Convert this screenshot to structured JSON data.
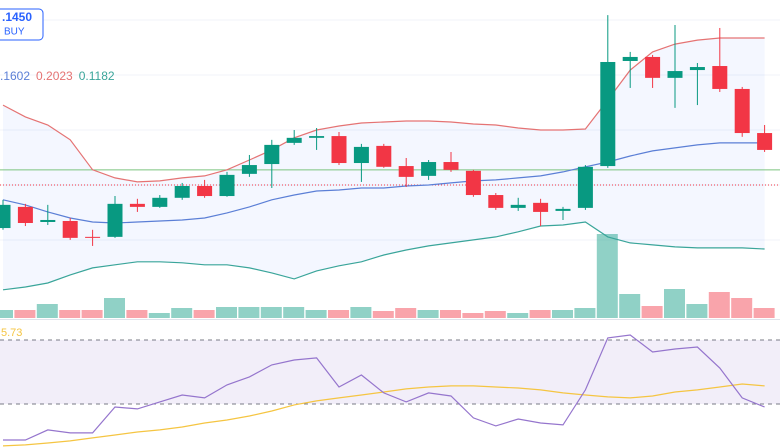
{
  "chart_data": {
    "type": "candlestick",
    "price_label": ".1450",
    "price_label_action": "BUY",
    "up_color": "#089981",
    "down_color": "#f23645",
    "ylim": [
      0.0912,
      0.2174
    ],
    "candles": {
      "open": [
        0.1269,
        0.1353,
        0.1293,
        0.1297,
        0.1234,
        0.1234,
        0.1365,
        0.1353,
        0.1389,
        0.1436,
        0.1396,
        0.1484,
        0.1523,
        0.1607,
        0.1627,
        0.1634,
        0.1527,
        0.1595,
        0.1515,
        0.1476,
        0.1531,
        0.1496,
        0.14,
        0.1349,
        0.1369,
        0.1337,
        0.1349,
        0.1515,
        0.1932,
        0.1948,
        0.1865,
        0.1896,
        0.1912,
        0.1821,
        0.1646
      ],
      "high": [
        0.1381,
        0.1365,
        0.1361,
        0.1309,
        0.1262,
        0.1396,
        0.1385,
        0.14,
        0.1448,
        0.146,
        0.1492,
        0.1559,
        0.1619,
        0.1658,
        0.1666,
        0.165,
        0.1603,
        0.1603,
        0.1547,
        0.1539,
        0.1571,
        0.15,
        0.1408,
        0.1389,
        0.1385,
        0.1353,
        0.1519,
        0.2114,
        0.1968,
        0.1956,
        0.2075,
        0.1924,
        0.2063,
        0.1829,
        0.1678
      ],
      "low": [
        0.1262,
        0.1277,
        0.1281,
        0.1222,
        0.1198,
        0.123,
        0.1333,
        0.1349,
        0.1381,
        0.1389,
        0.1393,
        0.1472,
        0.1428,
        0.1599,
        0.1579,
        0.1519,
        0.1452,
        0.1508,
        0.1432,
        0.146,
        0.1492,
        0.1393,
        0.1341,
        0.1337,
        0.1277,
        0.1301,
        0.1341,
        0.1508,
        0.1825,
        0.1825,
        0.1746,
        0.1757,
        0.1809,
        0.1631,
        0.1571
      ],
      "close": [
        0.1361,
        0.1289,
        0.1301,
        0.123,
        0.123,
        0.1365,
        0.1353,
        0.1389,
        0.1436,
        0.1396,
        0.148,
        0.1519,
        0.1599,
        0.1627,
        0.1634,
        0.1527,
        0.1591,
        0.1512,
        0.1472,
        0.1531,
        0.15,
        0.14,
        0.1349,
        0.1361,
        0.1333,
        0.1345,
        0.1512,
        0.1928,
        0.1948,
        0.1865,
        0.1892,
        0.1908,
        0.1821,
        0.1646,
        0.1579
      ]
    },
    "bands": [
      {
        "color": "#5b7fd6",
        "values": [
          0.1381,
          0.1361,
          0.1333,
          0.1309,
          0.1293,
          0.1289,
          0.1293,
          0.1297,
          0.1301,
          0.1309,
          0.1329,
          0.1353,
          0.1381,
          0.14,
          0.1416,
          0.142,
          0.1428,
          0.1428,
          0.1436,
          0.144,
          0.1448,
          0.1456,
          0.146,
          0.1468,
          0.1476,
          0.1492,
          0.1512,
          0.1531,
          0.1555,
          0.1575,
          0.1587,
          0.1599,
          0.1607,
          0.1607,
          0.1607
        ]
      },
      {
        "color": "#e57373",
        "values": [
          0.1757,
          0.171,
          0.1678,
          0.1619,
          0.15,
          0.1468,
          0.1452,
          0.1456,
          0.1468,
          0.1476,
          0.15,
          0.1539,
          0.1579,
          0.1627,
          0.1658,
          0.1674,
          0.1686,
          0.169,
          0.1694,
          0.1694,
          0.169,
          0.1682,
          0.1678,
          0.1666,
          0.1658,
          0.1658,
          0.1662,
          0.1777,
          0.1896,
          0.1968,
          0.1999,
          0.2015,
          0.2023,
          0.2023,
          0.2023
        ]
      },
      {
        "color": "#3aa59a",
        "values": [
          0.1024,
          0.1035,
          0.1051,
          0.1083,
          0.1111,
          0.1123,
          0.1135,
          0.1135,
          0.1131,
          0.1123,
          0.1123,
          0.1111,
          0.1091,
          0.1067,
          0.1099,
          0.1119,
          0.1135,
          0.1162,
          0.1182,
          0.1198,
          0.121,
          0.1222,
          0.1234,
          0.1254,
          0.1277,
          0.1281,
          0.1293,
          0.1234,
          0.121,
          0.1202,
          0.1194,
          0.119,
          0.119,
          0.119,
          0.1186
        ]
      }
    ],
    "legend_values": [
      ".1602",
      "0.2023",
      "0.1182"
    ],
    "hlines": [
      {
        "value": 0.15,
        "color": "#7cc47f",
        "dash": "none"
      },
      {
        "value": 0.144,
        "color": "#f23645",
        "dash": "1 2"
      }
    ],
    "volume": {
      "ylim": [
        0,
        100
      ],
      "values": [
        8,
        8,
        14,
        8,
        8,
        20,
        8,
        5,
        10,
        8,
        11,
        11,
        11,
        11,
        8,
        8,
        11,
        7,
        10,
        8,
        8,
        5,
        7,
        5,
        8,
        8,
        10,
        84,
        24,
        12,
        29,
        14,
        26,
        20,
        10
      ]
    },
    "rsi": {
      "label": "5.73",
      "color": "#9575cd",
      "ma_color": "#f5c542",
      "ylim": [
        3.1,
        82.5
      ],
      "levels": [
        70,
        30
      ],
      "values": [
        7.5,
        7.5,
        13.8,
        11.9,
        11.9,
        28.1,
        26.9,
        31.3,
        35.6,
        33.8,
        41.9,
        46.9,
        54.4,
        57.5,
        58.8,
        40.6,
        48.1,
        36.9,
        31.3,
        36.9,
        35.0,
        21.3,
        16.3,
        20.6,
        18.1,
        16.9,
        38.8,
        71.3,
        73.1,
        62.5,
        64.4,
        65.6,
        52.5,
        33.8,
        28.1
      ],
      "ma": [
        3.8,
        4.4,
        5.6,
        6.9,
        8.8,
        10.6,
        12.5,
        13.8,
        15.6,
        18.1,
        20.0,
        22.5,
        25.6,
        29.4,
        31.9,
        33.8,
        35.6,
        37.5,
        39.4,
        40.6,
        41.3,
        41.3,
        40.6,
        40.0,
        38.8,
        36.9,
        35.6,
        34.4,
        33.8,
        35.0,
        37.5,
        38.8,
        40.6,
        42.5,
        41.3
      ]
    }
  }
}
